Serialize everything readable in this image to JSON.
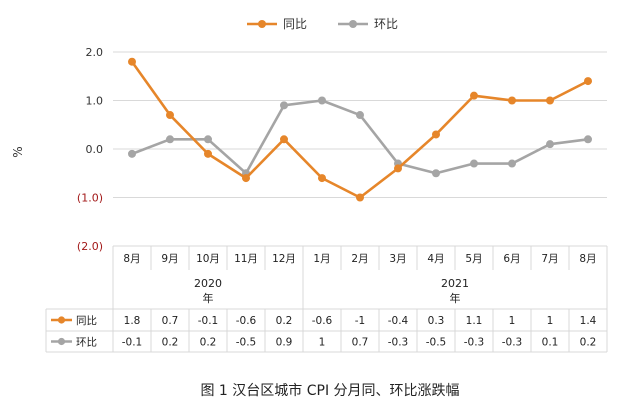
{
  "chart_data": {
    "type": "line",
    "title": "",
    "caption": "图 1 汉台区城市 CPI 分月同、环比涨跌幅",
    "ylabel": "%",
    "ylim": [
      -2.0,
      2.0
    ],
    "yticks": [
      2.0,
      1.0,
      0.0,
      -1.0,
      -2.0
    ],
    "yticklabels": [
      "2.0",
      "1.0",
      "0.0",
      "(1.0)",
      "(2.0)"
    ],
    "grid": true,
    "legend_position": "top",
    "categories": [
      "8月",
      "9月",
      "10月",
      "11月",
      "12月",
      "1月",
      "2月",
      "3月",
      "4月",
      "5月",
      "6月",
      "7月",
      "8月"
    ],
    "year_groups": [
      {
        "year": "2020",
        "suffix": "年",
        "start": 0,
        "end": 4
      },
      {
        "year": "2021",
        "suffix": "年",
        "start": 5,
        "end": 12
      }
    ],
    "series": [
      {
        "name": "同比",
        "color": "#e6862a",
        "values": [
          1.8,
          0.7,
          -0.1,
          -0.6,
          0.2,
          -0.6,
          -1,
          -0.4,
          0.3,
          1.1,
          1,
          1,
          1.4
        ],
        "labels": [
          "1.8",
          "0.7",
          "-0.1",
          "-0.6",
          "0.2",
          "-0.6",
          "-1",
          "-0.4",
          "0.3",
          "1.1",
          "1",
          "1",
          "1.4"
        ]
      },
      {
        "name": "环比",
        "color": "#a5a5a5",
        "values": [
          -0.1,
          0.2,
          0.2,
          -0.5,
          0.9,
          1,
          0.7,
          -0.3,
          -0.5,
          -0.3,
          -0.3,
          0.1,
          0.2
        ],
        "labels": [
          "-0.1",
          "0.2",
          "0.2",
          "-0.5",
          "0.9",
          "1",
          "0.7",
          "-0.3",
          "-0.5",
          "-0.3",
          "-0.3",
          "0.1",
          "0.2"
        ]
      }
    ]
  }
}
